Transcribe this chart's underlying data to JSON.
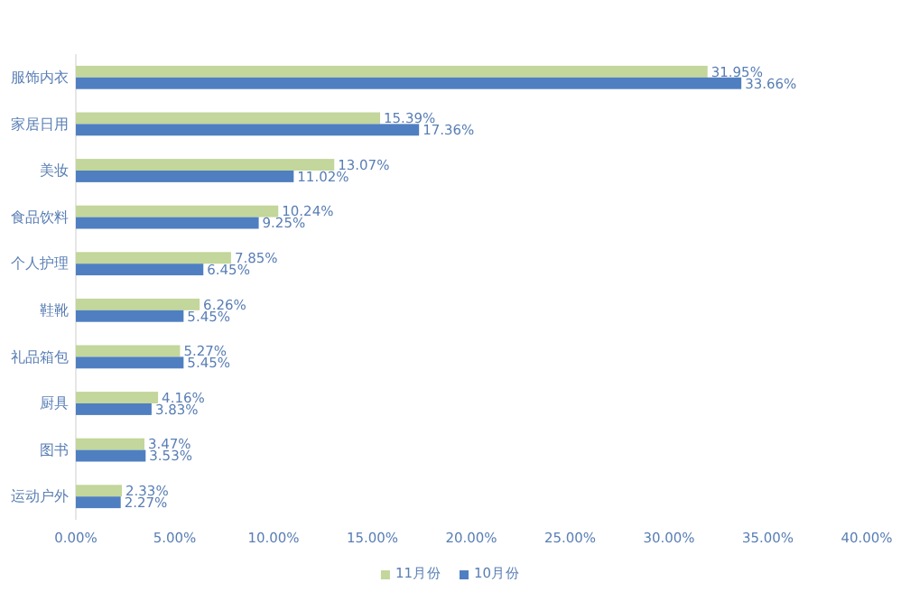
{
  "chart_data": {
    "type": "bar",
    "orientation": "horizontal",
    "categories": [
      "服饰内衣",
      "家居日用",
      "美妆",
      "食品饮料",
      "个人护理",
      "鞋靴",
      "礼品箱包",
      "厨具",
      "图书",
      "运动户外"
    ],
    "series": [
      {
        "name": "11月份",
        "color": "#c3d69b",
        "values": [
          31.95,
          15.39,
          13.07,
          10.24,
          7.85,
          6.26,
          5.27,
          4.16,
          3.47,
          2.33
        ],
        "value_labels": [
          "31.95%",
          "15.39%",
          "13.07%",
          "10.24%",
          "7.85%",
          "6.26%",
          "5.27%",
          "4.16%",
          "3.47%",
          "2.33%"
        ]
      },
      {
        "name": "10月份",
        "color": "#4f7fc0",
        "values": [
          33.66,
          17.36,
          11.02,
          9.25,
          6.45,
          5.45,
          5.45,
          3.83,
          3.53,
          2.27
        ],
        "value_labels": [
          "33.66%",
          "17.36%",
          "11.02%",
          "9.25%",
          "6.45%",
          "5.45%",
          "5.45%",
          "3.83%",
          "3.53%",
          "2.27%"
        ]
      }
    ],
    "xlim": [
      0,
      40
    ],
    "xticks": [
      {
        "value": 0,
        "label": "0.00%"
      },
      {
        "value": 5,
        "label": "5.00%"
      },
      {
        "value": 10,
        "label": "10.00%"
      },
      {
        "value": 15,
        "label": "15.00%"
      },
      {
        "value": 20,
        "label": "20.00%"
      },
      {
        "value": 25,
        "label": "25.00%"
      },
      {
        "value": 30,
        "label": "30.00%"
      },
      {
        "value": 35,
        "label": "35.00%"
      },
      {
        "value": 40,
        "label": "40.00%"
      }
    ],
    "grid": false,
    "legend": "bottom"
  }
}
